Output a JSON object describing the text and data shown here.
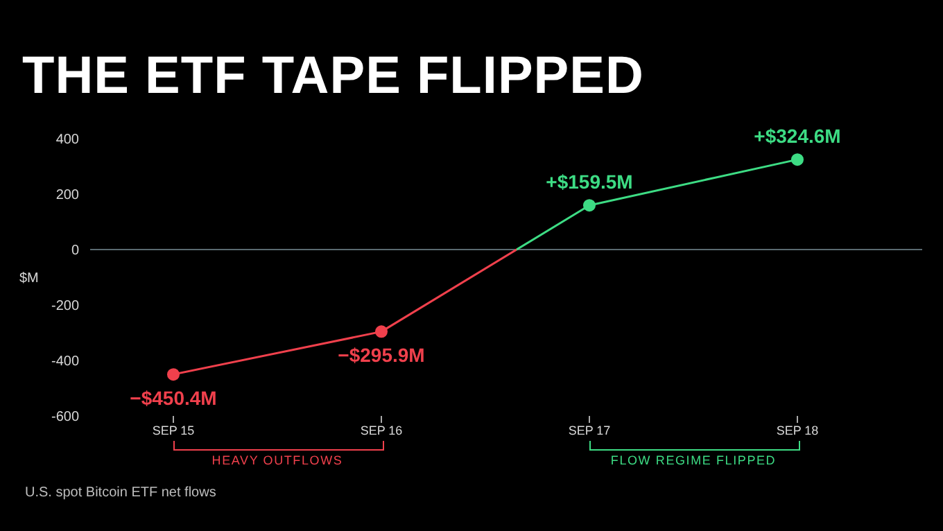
{
  "chart_data": {
    "type": "line",
    "title": "THE ETF TAPE FLIPPED",
    "ylabel": "$M",
    "categories": [
      "SEP 15",
      "SEP 16",
      "SEP 17",
      "SEP 18"
    ],
    "series": [
      {
        "colors": [
          "#f0404c",
          "#f0404c",
          "#3ddc84",
          "#3ddc84"
        ],
        "values": [
          -450.4,
          -295.9,
          159.5,
          324.6
        ],
        "value_labels": [
          "−$450.4M",
          "−$295.9M",
          "+$159.5M",
          "+$324.6M"
        ]
      }
    ],
    "ylim": [
      -600,
      400
    ],
    "yticks": [
      -600,
      -400,
      -200,
      0,
      200,
      400
    ],
    "ref_lines": [
      {
        "axis": "y",
        "value": 0,
        "color": "#5a6a70"
      }
    ],
    "annotations": [
      "HEAVY OUTFLOWS",
      "FLOW REGIME FLIPPED",
      "U.S. spot Bitcoin ETF net flows"
    ],
    "marker": "circle"
  }
}
